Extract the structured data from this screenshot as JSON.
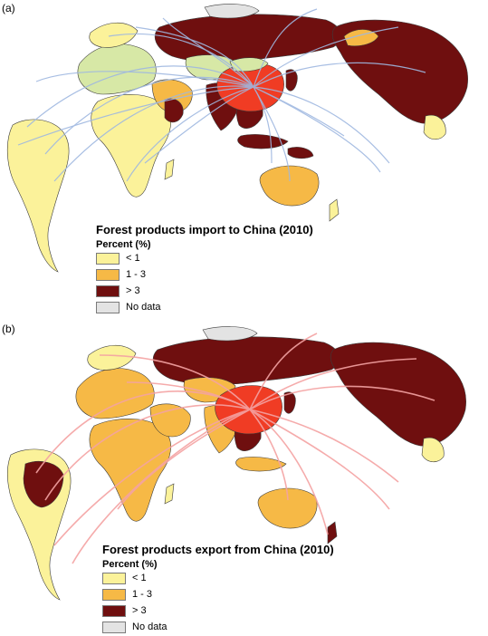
{
  "colors": {
    "ocean": "#ffffff",
    "no_data": "#e3e3e3",
    "lt1": "#fbf29a",
    "b1to3": "#f6b946",
    "gt3": "#6f0f0f",
    "china": "#f03c24",
    "import_flow": "#9fb8e0",
    "export_flow": "#f4a3a3",
    "border": "#3c3c3c"
  },
  "panels": [
    {
      "label": "(a)",
      "title": "Forest products import to China (2010)",
      "legend_subtitle": "Percent (%)",
      "legend": [
        {
          "key": "lt1",
          "label": "< 1"
        },
        {
          "key": "b1to3",
          "label": "1 - 3"
        },
        {
          "key": "gt3",
          "label": "> 3"
        },
        {
          "key": "no_data",
          "label": "No data"
        }
      ]
    },
    {
      "label": "(b)",
      "title": "Forest products export from China (2010)",
      "legend_subtitle": "Percent (%)",
      "legend": [
        {
          "key": "lt1",
          "label": "< 1"
        },
        {
          "key": "b1to3",
          "label": "1 - 3"
        },
        {
          "key": "gt3",
          "label": "> 3"
        },
        {
          "key": "no_data",
          "label": "No data"
        }
      ]
    }
  ]
}
